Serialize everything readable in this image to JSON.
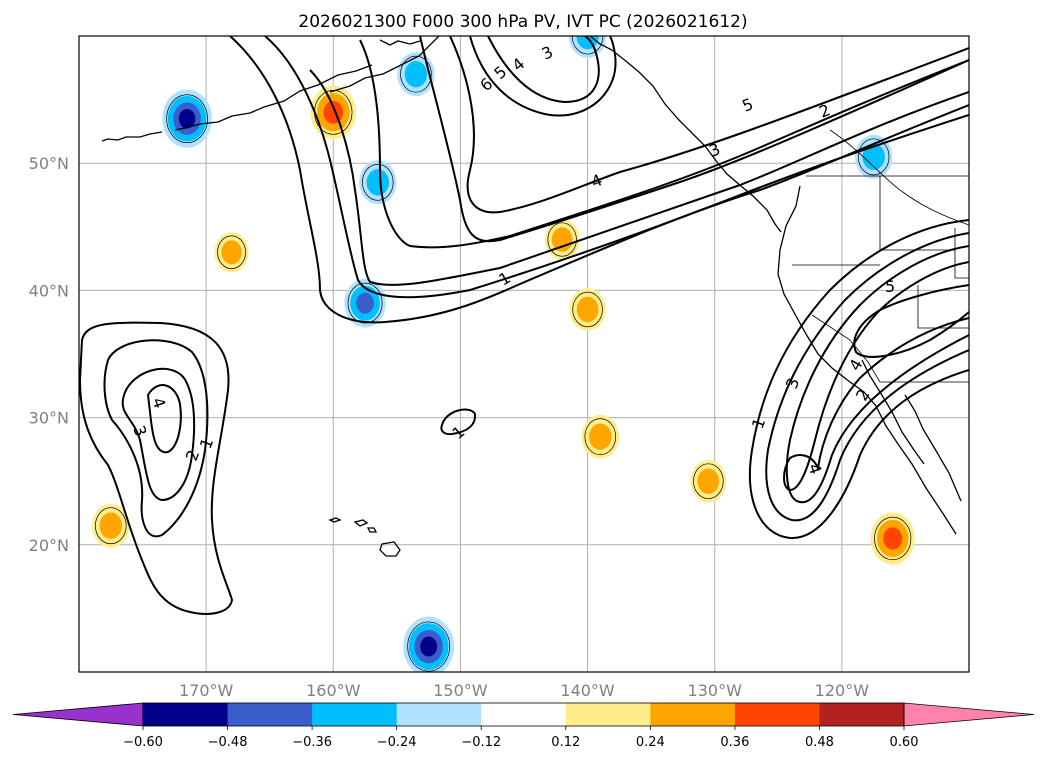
{
  "chart_data": {
    "type": "map",
    "title": "2026021300 F000 300 hPa PV, IVT PC (2026021612)",
    "xaxis": {
      "ticks": [
        -170,
        -160,
        -150,
        -140,
        -130,
        -120
      ],
      "tick_labels": [
        "170°W",
        "160°W",
        "150°W",
        "140°W",
        "130°W",
        "120°W"
      ],
      "range": [
        -180,
        -110
      ]
    },
    "yaxis": {
      "ticks": [
        20,
        30,
        40,
        50
      ],
      "tick_labels": [
        "20°N",
        "30°N",
        "40°N",
        "50°N"
      ],
      "range": [
        10,
        60
      ]
    },
    "colorbar": {
      "levels": [
        -0.6,
        -0.48,
        -0.36,
        -0.24,
        -0.12,
        0.12,
        0.24,
        0.36,
        0.48,
        0.6
      ],
      "tick_labels": [
        "−0.60",
        "−0.48",
        "−0.36",
        "−0.24",
        "−0.12",
        "0.12",
        "0.24",
        "0.36",
        "0.48",
        "0.60"
      ],
      "colors": [
        "#9932cc",
        "#00008b",
        "#3a5fcd",
        "#00bfff",
        "#b0e2ff",
        "#ffffff",
        "#ffec8b",
        "#ffa500",
        "#ff4500",
        "#b22222",
        "#ff82ab"
      ],
      "extend": "both"
    },
    "ivt_contours": {
      "levels": [
        1,
        2,
        3,
        4,
        5,
        6
      ],
      "label_values": [
        "1",
        "2",
        "3",
        "4",
        "5",
        "6"
      ]
    },
    "pv_anomalies": [
      {
        "lon": -171.5,
        "lat": 53.5,
        "value": -0.48
      },
      {
        "lon": -160.0,
        "lat": 54.0,
        "value": 0.42
      },
      {
        "lon": -153.5,
        "lat": 57.0,
        "value": -0.3
      },
      {
        "lon": -156.5,
        "lat": 48.5,
        "value": -0.3
      },
      {
        "lon": -157.5,
        "lat": 39.0,
        "value": -0.36
      },
      {
        "lon": -152.5,
        "lat": 12.0,
        "value": -0.5
      },
      {
        "lon": -177.5,
        "lat": 21.5,
        "value": 0.3
      },
      {
        "lon": -168.0,
        "lat": 43.0,
        "value": 0.25
      },
      {
        "lon": -142.0,
        "lat": 44.0,
        "value": 0.26
      },
      {
        "lon": -140.0,
        "lat": 38.5,
        "value": 0.28
      },
      {
        "lon": -139.0,
        "lat": 28.5,
        "value": 0.3
      },
      {
        "lon": -130.5,
        "lat": 25.0,
        "value": 0.28
      },
      {
        "lon": -116.0,
        "lat": 20.5,
        "value": 0.4
      },
      {
        "lon": -117.5,
        "lat": 50.5,
        "value": -0.3
      },
      {
        "lon": -140.0,
        "lat": 60.0,
        "value": -0.3
      }
    ]
  }
}
